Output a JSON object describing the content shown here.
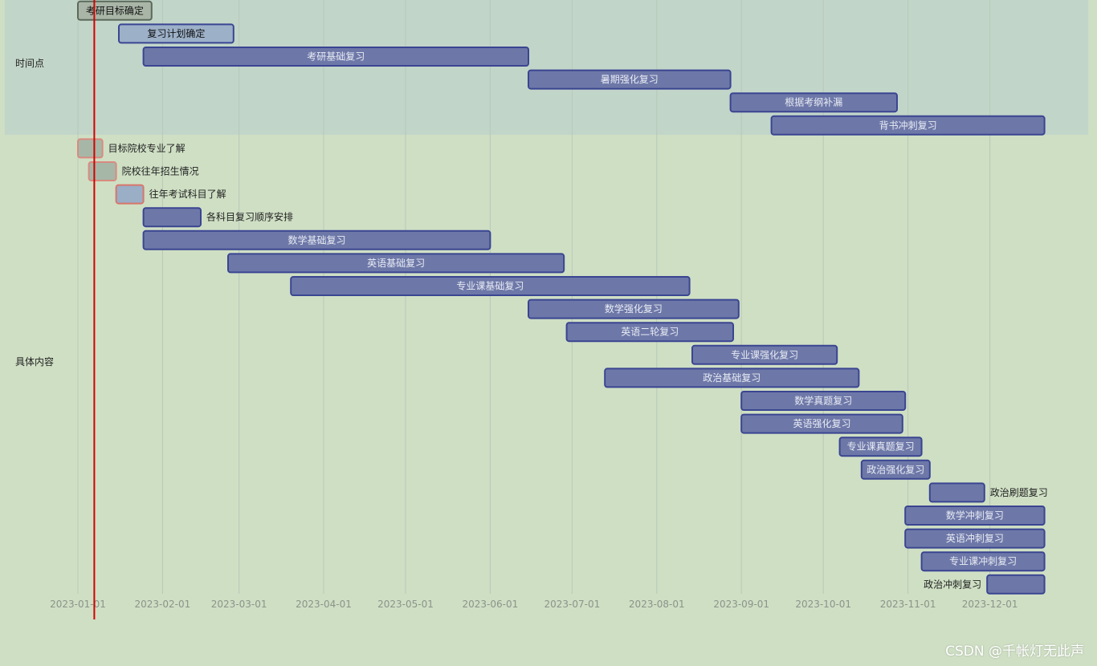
{
  "chart_data": {
    "type": "gantt",
    "x_ticks": [
      "2023-01-01",
      "2023-02-01",
      "2023-03-01",
      "2023-04-01",
      "2023-05-01",
      "2023-06-01",
      "2023-07-01",
      "2023-08-01",
      "2023-09-01",
      "2023-10-01",
      "2023-11-01",
      "2023-12-01"
    ],
    "today": "2023-01-07",
    "sections": [
      {
        "name": "时间点",
        "tasks": [
          {
            "name": "考研目标确定",
            "start": "2023-01-01",
            "end": "2023-01-28",
            "style": "gray"
          },
          {
            "name": "复习计划确定",
            "start": "2023-01-16",
            "end": "2023-02-27",
            "style": "light"
          },
          {
            "name": "考研基础复习",
            "start": "2023-01-25",
            "end": "2023-06-15",
            "style": "normal"
          },
          {
            "name": "暑期强化复习",
            "start": "2023-06-15",
            "end": "2023-08-28",
            "style": "normal"
          },
          {
            "name": "根据考纲补漏",
            "start": "2023-08-28",
            "end": "2023-10-28",
            "style": "normal"
          },
          {
            "name": "背书冲刺复习",
            "start": "2023-09-12",
            "end": "2023-12-21",
            "style": "normal"
          }
        ]
      },
      {
        "name": "具体内容",
        "tasks": [
          {
            "name": "目标院校专业了解",
            "start": "2023-01-01",
            "end": "2023-01-10",
            "style": "done"
          },
          {
            "name": "院校往年招生情况",
            "start": "2023-01-05",
            "end": "2023-01-15",
            "style": "done"
          },
          {
            "name": "往年考试科目了解",
            "start": "2023-01-15",
            "end": "2023-01-25",
            "style": "active"
          },
          {
            "name": "各科目复习顺序安排",
            "start": "2023-01-25",
            "end": "2023-02-15",
            "style": "normal"
          },
          {
            "name": "数学基础复习",
            "start": "2023-01-25",
            "end": "2023-06-01",
            "style": "normal"
          },
          {
            "name": "英语基础复习",
            "start": "2023-02-25",
            "end": "2023-06-28",
            "style": "normal"
          },
          {
            "name": "专业课基础复习",
            "start": "2023-03-20",
            "end": "2023-08-13",
            "style": "normal"
          },
          {
            "name": "数学强化复习",
            "start": "2023-06-15",
            "end": "2023-08-31",
            "style": "normal"
          },
          {
            "name": "英语二轮复习",
            "start": "2023-06-29",
            "end": "2023-08-29",
            "style": "normal"
          },
          {
            "name": "专业课强化复习",
            "start": "2023-08-14",
            "end": "2023-10-06",
            "style": "normal"
          },
          {
            "name": "政治基础复习",
            "start": "2023-07-13",
            "end": "2023-10-14",
            "style": "normal"
          },
          {
            "name": "数学真题复习",
            "start": "2023-09-01",
            "end": "2023-10-31",
            "style": "normal"
          },
          {
            "name": "英语强化复习",
            "start": "2023-09-01",
            "end": "2023-10-30",
            "style": "normal"
          },
          {
            "name": "专业课真题复习",
            "start": "2023-10-07",
            "end": "2023-11-06",
            "style": "normal"
          },
          {
            "name": "政治强化复习",
            "start": "2023-10-15",
            "end": "2023-11-09",
            "style": "normal"
          },
          {
            "name": "政治刷题复习",
            "start": "2023-11-09",
            "end": "2023-11-29",
            "style": "normal"
          },
          {
            "name": "数学冲刺复习",
            "start": "2023-10-31",
            "end": "2023-12-21",
            "style": "normal"
          },
          {
            "name": "英语冲刺复习",
            "start": "2023-10-31",
            "end": "2023-12-21",
            "style": "normal"
          },
          {
            "name": "专业课冲刺复习",
            "start": "2023-11-06",
            "end": "2023-12-21",
            "style": "normal"
          },
          {
            "name": "政治冲刺复习",
            "start": "2023-11-30",
            "end": "2023-12-21",
            "style": "normal"
          }
        ]
      }
    ],
    "colors": {
      "background": "#cfdfc4",
      "section_band": "#c2d5c9",
      "grid": "#b8c8ba",
      "bar_fill": "#6e78a8",
      "bar_stroke": "#3a4591",
      "bar_text": "#e8ecf4",
      "outside_text": "#222222",
      "done_fill": "#a7b7a7",
      "done_stroke": "#d98a80",
      "active_fill": "#9aaec6",
      "active_stroke": "#d9756a",
      "light_fill": "#9cb0c8",
      "gray_fill": "#a9b6a7",
      "gray_stroke": "#5a6a5a",
      "today_line": "#d40000"
    }
  },
  "watermark": "CSDN @千帐灯无此声"
}
